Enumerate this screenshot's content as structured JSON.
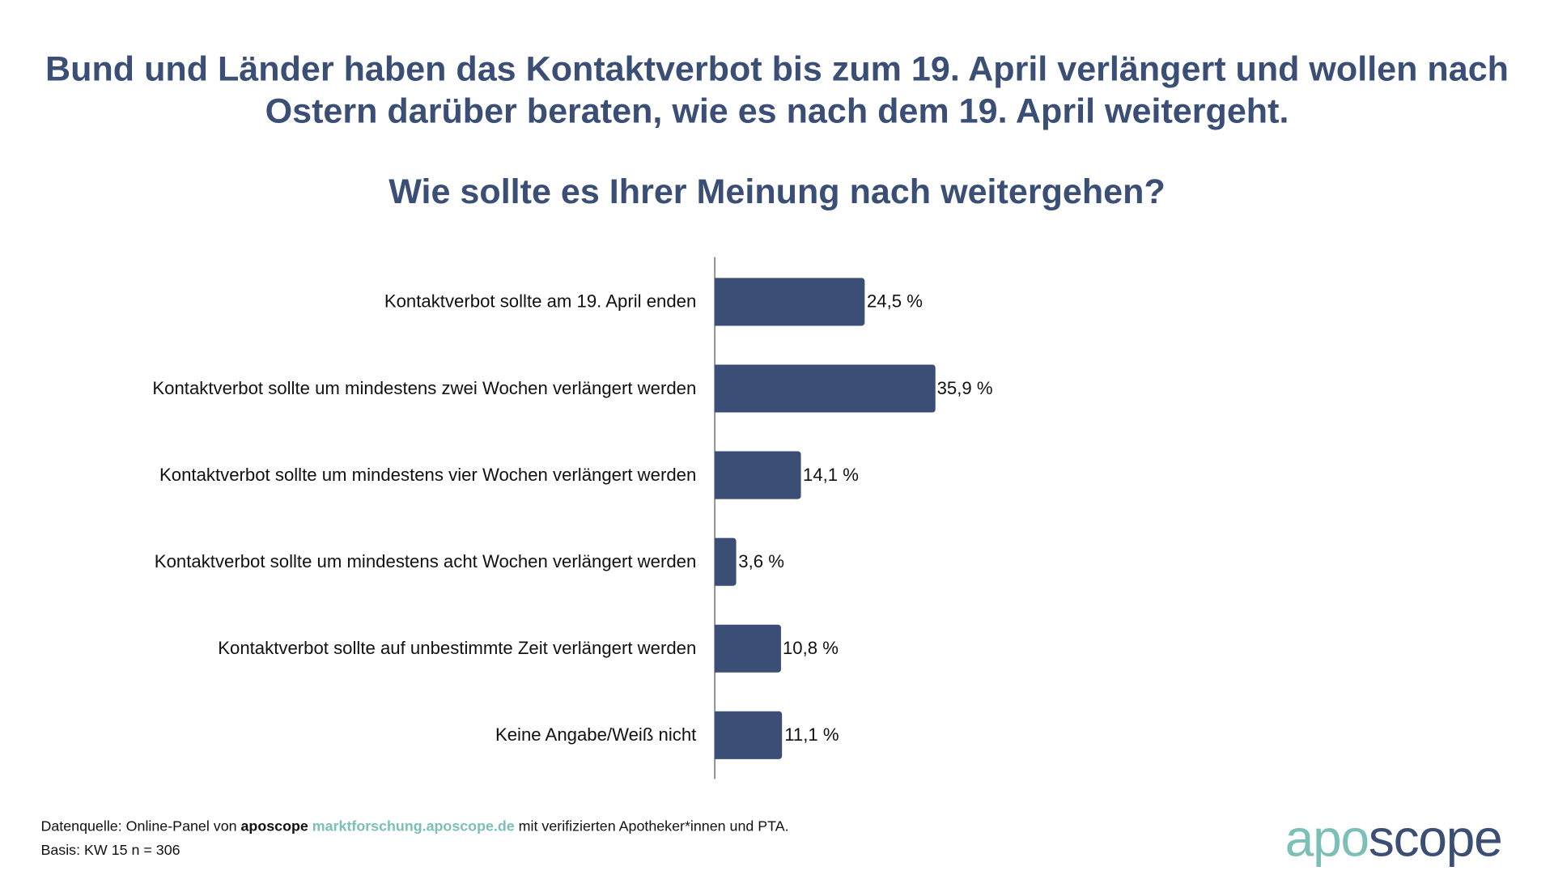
{
  "chart_data": {
    "type": "bar",
    "orientation": "horizontal",
    "title": "Bund und Länder haben das Kontaktverbot bis zum 19. April verlängert und wollen nach Ostern darüber beraten, wie es nach dem 19. April weitergeht.",
    "subtitle": "Wie sollte es Ihrer Meinung nach weitergehen?",
    "categories": [
      "Kontaktverbot sollte am 19. April enden",
      "Kontaktverbot sollte um mindestens zwei Wochen verlängert werden",
      "Kontaktverbot sollte um mindestens vier Wochen verlängert werden",
      "Kontaktverbot sollte um mindestens acht Wochen verlängert werden",
      "Kontaktverbot sollte auf unbestimmte Zeit verlängert werden",
      "Keine Angabe/Weiß nicht"
    ],
    "values": [
      24.5,
      35.9,
      14.1,
      3.6,
      10.8,
      11.1
    ],
    "value_labels": [
      "24,5 %",
      "35,9 %",
      "14,1 %",
      "3,6 %",
      "10,8 %",
      "11,1 %"
    ],
    "xlabel": "",
    "ylabel": "",
    "xlim": [
      0,
      100
    ],
    "grid": false,
    "bar_color": "#3b4f76"
  },
  "footer": {
    "source_prefix": "Datenquelle: Online-Panel von",
    "source_brand": "aposcope",
    "source_link": "marktforschung.aposcope.de",
    "source_suffix": "mit verifizierten Apotheker*innen und PTA.",
    "basis": "Basis: KW 15 n = 306"
  },
  "logo": {
    "part1": "apo",
    "part2": "scope"
  },
  "colors": {
    "primary": "#3b4f76",
    "accent": "#7bbfb6"
  }
}
